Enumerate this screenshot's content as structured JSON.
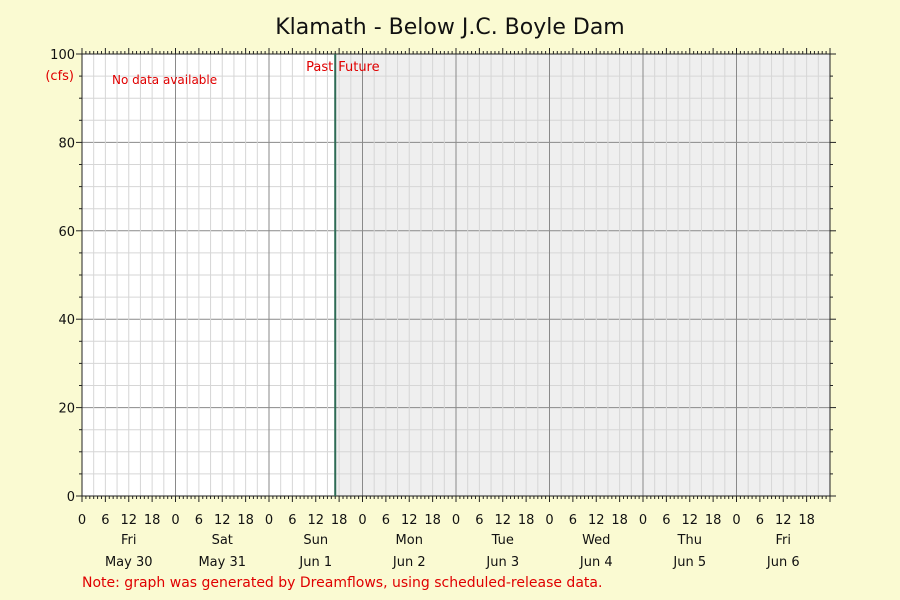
{
  "chart_data": {
    "type": "line",
    "title": "Klamath - Below J.C. Boyle Dam",
    "ylabel": "(cfs)",
    "ylim": [
      0,
      100
    ],
    "y_ticks": [
      0,
      20,
      40,
      60,
      80,
      100
    ],
    "x_hour_ticks": [
      0,
      6,
      12,
      18
    ],
    "days": [
      {
        "weekday": "Fri",
        "date": "May 30"
      },
      {
        "weekday": "Sat",
        "date": "May 31"
      },
      {
        "weekday": "Sun",
        "date": "Jun 1"
      },
      {
        "weekday": "Mon",
        "date": "Jun 2"
      },
      {
        "weekday": "Tue",
        "date": "Jun 3"
      },
      {
        "weekday": "Wed",
        "date": "Jun 4"
      },
      {
        "weekday": "Thu",
        "date": "Jun 5"
      },
      {
        "weekday": "Fri",
        "date": "Jun 6"
      }
    ],
    "now_marker": {
      "day_index": 2,
      "hour": 17,
      "past_label": "Past",
      "future_label": "Future"
    },
    "series": [],
    "no_data_text": "No data available",
    "grid": true,
    "past_background": "#ffffff",
    "future_background": "#efefef",
    "marker_color": "#2e6b55"
  },
  "footnote": "Note: graph was generated by Dreamflows, using scheduled-release data."
}
